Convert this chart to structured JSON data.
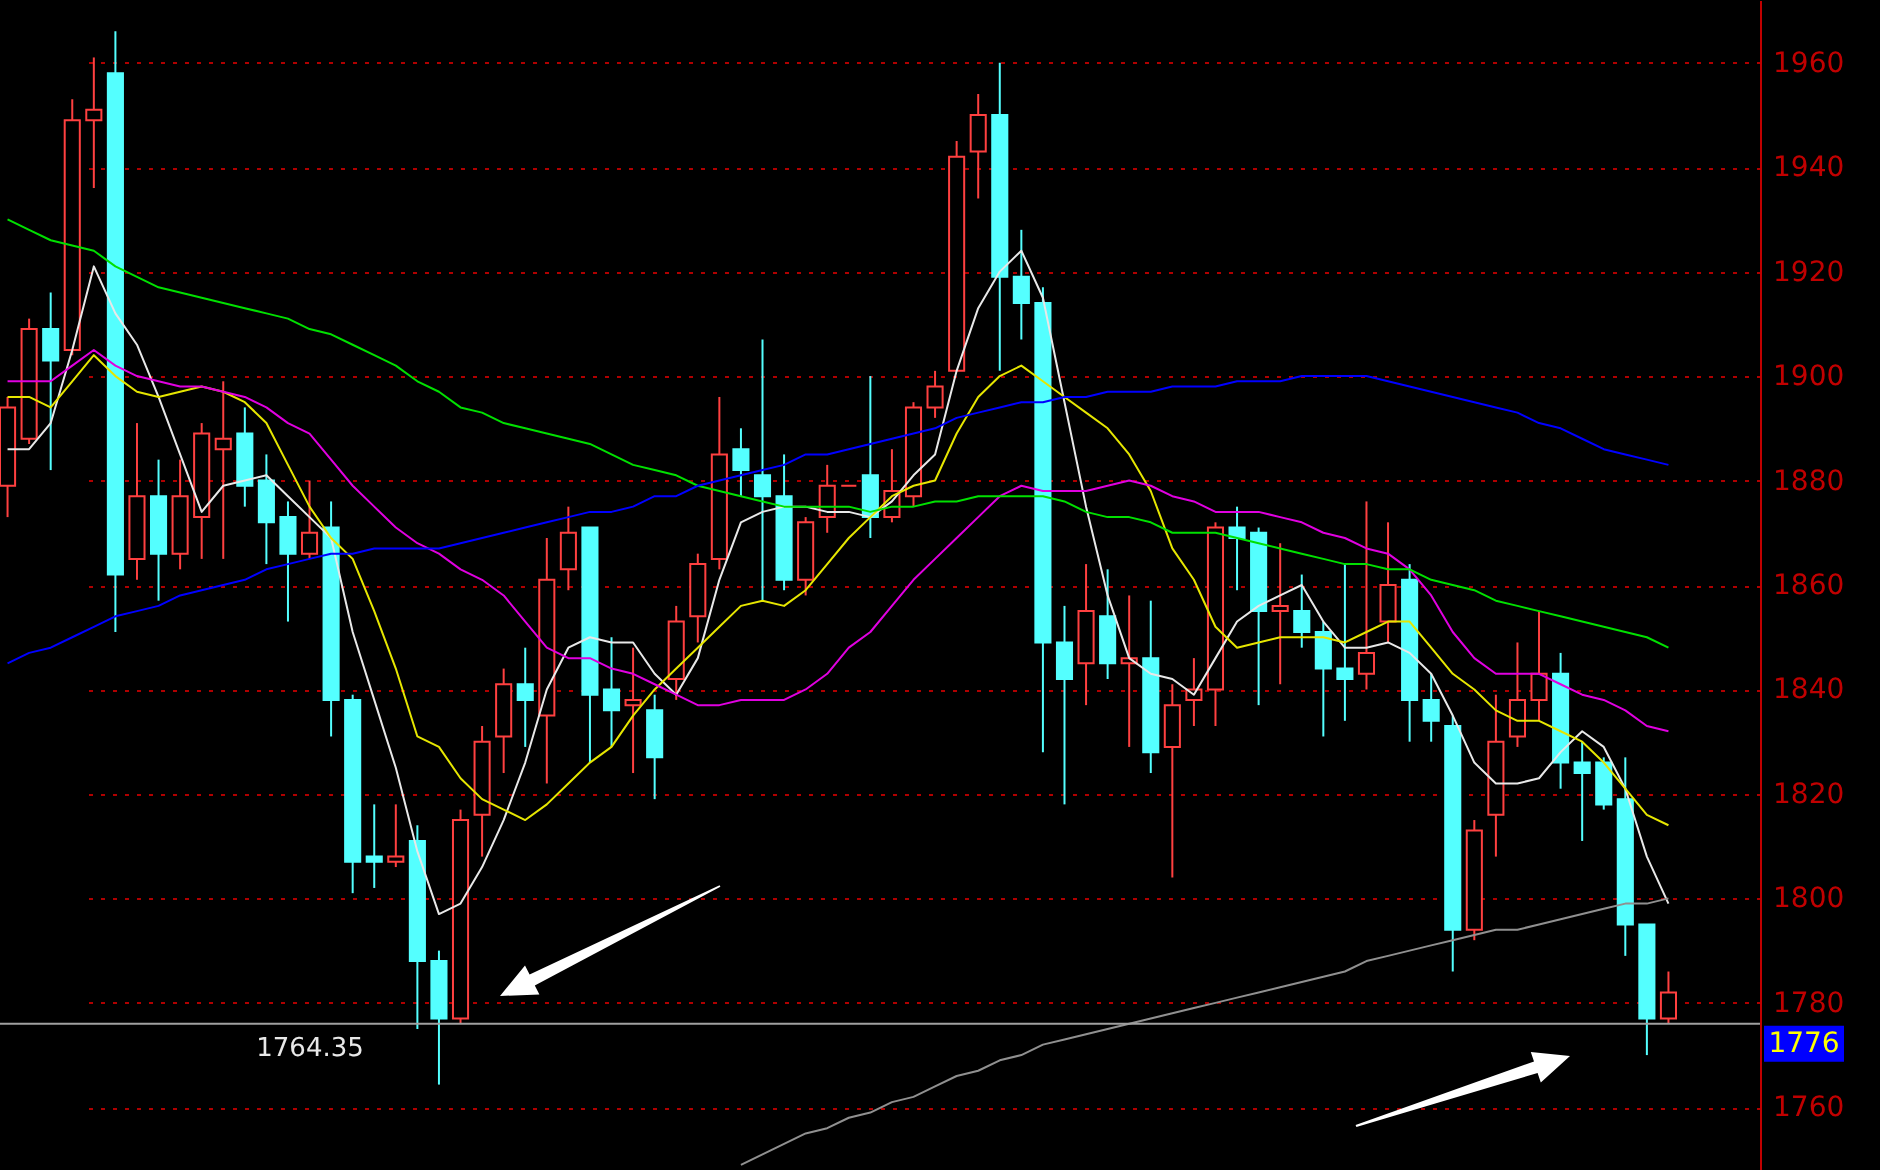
{
  "chart_data": {
    "type": "candlestick",
    "categories": [
      null,
      null,
      null,
      null,
      null,
      null,
      null,
      null,
      null,
      null,
      null,
      null,
      null,
      null,
      null,
      null,
      null,
      null,
      null,
      null,
      null,
      null,
      null,
      null,
      null,
      null,
      null,
      null,
      null,
      null,
      null,
      null,
      null,
      null,
      null,
      null,
      null,
      null,
      null,
      null,
      null,
      null,
      null,
      null,
      null,
      null,
      null,
      null,
      null,
      null,
      null,
      null,
      null,
      null,
      null,
      null,
      null,
      null,
      null,
      null,
      null,
      null,
      null,
      null,
      null,
      null,
      null,
      null,
      null,
      null,
      null,
      null,
      null,
      null,
      null,
      null,
      null,
      null
    ],
    "ohlc": [
      [
        1879,
        1896,
        1873,
        1894
      ],
      [
        1888,
        1911,
        1887,
        1909
      ],
      [
        1909,
        1916,
        1882,
        1903
      ],
      [
        1905,
        1953,
        1904,
        1949
      ],
      [
        1949,
        1961,
        1936,
        1951
      ],
      [
        1958,
        1966,
        1851,
        1862
      ],
      [
        1865,
        1891,
        1861,
        1877
      ],
      [
        1877,
        1884,
        1857,
        1866
      ],
      [
        1866,
        1884,
        1863,
        1877
      ],
      [
        1873,
        1891,
        1865,
        1889
      ],
      [
        1886,
        1899,
        1865,
        1888
      ],
      [
        1889,
        1894,
        1875,
        1879
      ],
      [
        1880,
        1885,
        1864,
        1872
      ],
      [
        1873,
        1876,
        1853,
        1866
      ],
      [
        1866,
        1880,
        1865,
        1870
      ],
      [
        1871,
        1876,
        1831,
        1838
      ],
      [
        1838,
        1839,
        1801,
        1807
      ],
      [
        1808,
        1818,
        1802,
        1807
      ],
      [
        1807,
        1818,
        1806,
        1808
      ],
      [
        1811,
        1814,
        1775,
        1788
      ],
      [
        1788,
        1790,
        1764.35,
        1777
      ],
      [
        1777,
        1817,
        1776,
        1815
      ],
      [
        1816,
        1833,
        1808,
        1830
      ],
      [
        1831,
        1844,
        1824,
        1841
      ],
      [
        1841,
        1848,
        1829,
        1838
      ],
      [
        1835,
        1869,
        1822,
        1861
      ],
      [
        1863,
        1875,
        1859,
        1870
      ],
      [
        1871,
        1871,
        1826,
        1839
      ],
      [
        1840,
        1850,
        1829,
        1836
      ],
      [
        1837,
        1848,
        1824,
        1838
      ],
      [
        1836,
        1839,
        1819,
        1827
      ],
      [
        1842,
        1856,
        1838,
        1853
      ],
      [
        1854,
        1866,
        1849,
        1864
      ],
      [
        1865,
        1896,
        1863,
        1885
      ],
      [
        1886,
        1890,
        1877,
        1882
      ],
      [
        1881,
        1907,
        1857,
        1877
      ],
      [
        1877,
        1885,
        1859,
        1861
      ],
      [
        1861,
        1873,
        1858,
        1872
      ],
      [
        1873,
        1883,
        1870,
        1879
      ],
      [
        1879,
        1879,
        1879,
        1879
      ],
      [
        1881,
        1900,
        1869,
        1873
      ],
      [
        1873,
        1886,
        1872,
        1878
      ],
      [
        1877,
        1895,
        1875,
        1894
      ],
      [
        1894,
        1901,
        1892,
        1898
      ],
      [
        1901,
        1945,
        1901,
        1942
      ],
      [
        1943,
        1954,
        1934,
        1950
      ],
      [
        1950,
        1960,
        1901,
        1919
      ],
      [
        1919,
        1928,
        1907,
        1914
      ],
      [
        1914,
        1917,
        1828,
        1849
      ],
      [
        1849,
        1856,
        1818,
        1842
      ],
      [
        1845,
        1864,
        1837,
        1855
      ],
      [
        1854,
        1863,
        1842,
        1845
      ],
      [
        1845,
        1858,
        1829,
        1846
      ],
      [
        1846,
        1857,
        1824,
        1828
      ],
      [
        1829,
        1841,
        1804,
        1837
      ],
      [
        1838,
        1846,
        1833,
        1840
      ],
      [
        1840,
        1872,
        1833,
        1871
      ],
      [
        1871,
        1875,
        1859,
        1869
      ],
      [
        1870,
        1871,
        1837,
        1855
      ],
      [
        1855,
        1868,
        1841,
        1856
      ],
      [
        1855,
        1862,
        1848,
        1851
      ],
      [
        1851,
        1853,
        1831,
        1844
      ],
      [
        1844,
        1864,
        1834,
        1842
      ],
      [
        1843,
        1876,
        1840,
        1847
      ],
      [
        1853,
        1872,
        1849,
        1860
      ],
      [
        1861,
        1864,
        1830,
        1838
      ],
      [
        1838,
        1843,
        1830,
        1834
      ],
      [
        1833,
        1835,
        1786,
        1794
      ],
      [
        1794,
        1815,
        1792,
        1813
      ],
      [
        1816,
        1839,
        1808,
        1830
      ],
      [
        1831,
        1849,
        1829,
        1838
      ],
      [
        1838,
        1855,
        1834,
        1843
      ],
      [
        1843,
        1847,
        1821,
        1826
      ],
      [
        1826,
        1830,
        1811,
        1824
      ],
      [
        1826,
        1827,
        1817,
        1818
      ],
      [
        1819,
        1827,
        1789,
        1795
      ],
      [
        1795,
        1795,
        1770,
        1777
      ],
      [
        1777,
        1786,
        1776,
        1782
      ]
    ],
    "colors": [
      "#ff4040",
      "#ff4040",
      "#54ffff",
      "#ff4040",
      "#ff4040",
      "#54ffff",
      "#ff4040",
      "#54ffff",
      "#ff4040",
      "#ff4040",
      "#ff4040",
      "#54ffff",
      "#54ffff",
      "#54ffff",
      "#ff4040",
      "#54ffff",
      "#54ffff",
      "#54ffff",
      "#ff4040",
      "#54ffff",
      "#54ffff",
      "#ff4040",
      "#ff4040",
      "#ff4040",
      "#54ffff",
      "#ff4040",
      "#ff4040",
      "#54ffff",
      "#54ffff",
      "#ff4040",
      "#54ffff",
      "#ff4040",
      "#ff4040",
      "#ff4040",
      "#54ffff",
      "#54ffff",
      "#54ffff",
      "#ff4040",
      "#ff4040",
      "#ff4040",
      "#54ffff",
      "#ff4040",
      "#ff4040",
      "#ff4040",
      "#ff4040",
      "#ff4040",
      "#54ffff",
      "#54ffff",
      "#54ffff",
      "#54ffff",
      "#ff4040",
      "#54ffff",
      "#ff4040",
      "#54ffff",
      "#ff4040",
      "#ff4040",
      "#ff4040",
      "#54ffff",
      "#54ffff",
      "#ff4040",
      "#54ffff",
      "#54ffff",
      "#54ffff",
      "#ff4040",
      "#ff4040",
      "#54ffff",
      "#54ffff",
      "#54ffff",
      "#ff4040",
      "#ff4040",
      "#ff4040",
      "#ff4040",
      "#54ffff",
      "#54ffff",
      "#54ffff",
      "#54ffff",
      "#54ffff",
      "#ff4040"
    ],
    "series": [
      {
        "type": "line",
        "color": "#e8e8e8",
        "values": [
          1886,
          1886,
          1891,
          1905,
          1921,
          1912,
          1906,
          1896,
          1885,
          1874,
          1879,
          1880,
          1881,
          1877,
          1873,
          1869,
          1851,
          1838,
          1825,
          1809,
          1797,
          1799,
          1806,
          1815,
          1826,
          1840,
          1848,
          1850,
          1849,
          1849,
          1843,
          1839,
          1846,
          1861,
          1872,
          1874,
          1875,
          1875,
          1874,
          1874,
          1873,
          1876,
          1881,
          1885,
          1901,
          1913,
          1920,
          1924,
          1915,
          1895,
          1875,
          1858,
          1846,
          1843,
          1842,
          1839,
          1846,
          1853,
          1856,
          1858,
          1860,
          1853,
          1848,
          1848,
          1849,
          1847,
          1843,
          1835,
          1826,
          1822,
          1822,
          1823,
          1828,
          1832,
          1829,
          1821,
          1808,
          1799
        ]
      },
      {
        "type": "line",
        "color": "#e6e600",
        "values": [
          1896,
          1896,
          1894,
          1899,
          1904,
          1900,
          1897,
          1896,
          1897,
          1898,
          1897,
          1895,
          1891,
          1883,
          1875,
          1869,
          1865,
          1855,
          1844,
          1831,
          1829,
          1823,
          1819,
          1817,
          1815,
          1818,
          1822,
          1826,
          1829,
          1835,
          1840,
          1844,
          1848,
          1852,
          1856,
          1857,
          1856,
          1859,
          1864,
          1869,
          1873,
          1877,
          1879,
          1880,
          1889,
          1896,
          1900,
          1902,
          1899,
          1896,
          1893,
          1890,
          1885,
          1878,
          1867,
          1861,
          1852,
          1848,
          1849,
          1850,
          1850,
          1850,
          1849,
          1851,
          1853,
          1853,
          1848,
          1843,
          1840,
          1836,
          1834,
          1834,
          1832,
          1830,
          1826,
          1821,
          1816,
          1814
        ]
      },
      {
        "type": "line",
        "color": "#e000e0",
        "values": [
          1899,
          1899,
          1899,
          1902,
          1905,
          1902,
          1900,
          1899,
          1898,
          1898,
          1897,
          1896,
          1894,
          1891,
          1889,
          1884,
          1879,
          1875,
          1871,
          1868,
          1866,
          1863,
          1861,
          1858,
          1853,
          1848,
          1846,
          1846,
          1844,
          1843,
          1841,
          1839,
          1837,
          1837,
          1838,
          1838,
          1838,
          1840,
          1843,
          1848,
          1851,
          1856,
          1861,
          1865,
          1869,
          1873,
          1877,
          1879,
          1878,
          1878,
          1878,
          1879,
          1880,
          1879,
          1877,
          1876,
          1874,
          1874,
          1874,
          1873,
          1872,
          1870,
          1869,
          1867,
          1866,
          1863,
          1858,
          1851,
          1846,
          1843,
          1843,
          1843,
          1841,
          1839,
          1838,
          1836,
          1833,
          1832
        ]
      },
      {
        "type": "line",
        "color": "#00e000",
        "values": [
          1930,
          1928,
          1926,
          1925,
          1924,
          1921,
          1919,
          1917,
          1916,
          1915,
          1914,
          1913,
          1912,
          1911,
          1909,
          1908,
          1906,
          1904,
          1902,
          1899,
          1897,
          1894,
          1893,
          1891,
          1890,
          1889,
          1888,
          1887,
          1885,
          1883,
          1882,
          1881,
          1879,
          1878,
          1877,
          1876,
          1875,
          1875,
          1875,
          1875,
          1874,
          1875,
          1875,
          1876,
          1876,
          1877,
          1877,
          1877,
          1877,
          1876,
          1874,
          1873,
          1873,
          1872,
          1870,
          1870,
          1870,
          1869,
          1868,
          1867,
          1866,
          1865,
          1864,
          1864,
          1863,
          1863,
          1861,
          1860,
          1859,
          1857,
          1856,
          1855,
          1854,
          1853,
          1852,
          1851,
          1850,
          1848
        ]
      },
      {
        "type": "line",
        "color": "#0000ff",
        "values": [
          1845,
          1847,
          1848,
          1850,
          1852,
          1854,
          1855,
          1856,
          1858,
          1859,
          1860,
          1861,
          1863,
          1864,
          1865,
          1866,
          1866,
          1867,
          1867,
          1867,
          1867,
          1868,
          1869,
          1870,
          1871,
          1872,
          1873,
          1874,
          1874,
          1875,
          1877,
          1877,
          1879,
          1880,
          1881,
          1882,
          1883,
          1885,
          1885,
          1886,
          1887,
          1888,
          1889,
          1890,
          1892,
          1893,
          1894,
          1895,
          1895,
          1896,
          1896,
          1897,
          1897,
          1897,
          1898,
          1898,
          1898,
          1899,
          1899,
          1899,
          1900,
          1900,
          1900,
          1900,
          1899,
          1898,
          1897,
          1896,
          1895,
          1894,
          1893,
          1891,
          1890,
          1888,
          1886,
          1885,
          1884,
          1883
        ]
      },
      {
        "type": "line",
        "color": "#909090",
        "values": [
          null,
          null,
          null,
          null,
          null,
          null,
          null,
          null,
          null,
          null,
          null,
          null,
          null,
          null,
          null,
          null,
          null,
          null,
          null,
          null,
          null,
          null,
          null,
          null,
          null,
          null,
          null,
          null,
          null,
          null,
          null,
          null,
          null,
          null,
          1749,
          1751,
          1753,
          1755,
          1756,
          1758,
          1759,
          1761,
          1762,
          1764,
          1766,
          1767,
          1769,
          1770,
          1772,
          1773,
          1774,
          1775,
          1776,
          1777,
          1778,
          1779,
          1780,
          1781,
          1782,
          1783,
          1784,
          1785,
          1786,
          1788,
          1789,
          1790,
          1791,
          1792,
          1793,
          1794,
          1794,
          1795,
          1796,
          1797,
          1798,
          1799,
          1799,
          1800
        ]
      }
    ],
    "ylim": [
      1748,
      1972
    ],
    "yticks": [
      1760,
      1780,
      1800,
      1820,
      1840,
      1860,
      1880,
      1900,
      1920,
      1940,
      1960
    ],
    "grid": "y",
    "tick_labels": "y",
    "ref_lines": [
      {
        "axis": "y",
        "value": 1776,
        "label": "1776",
        "color": "#a0a0a0"
      }
    ],
    "annotations": [
      "1764.35"
    ]
  }
}
